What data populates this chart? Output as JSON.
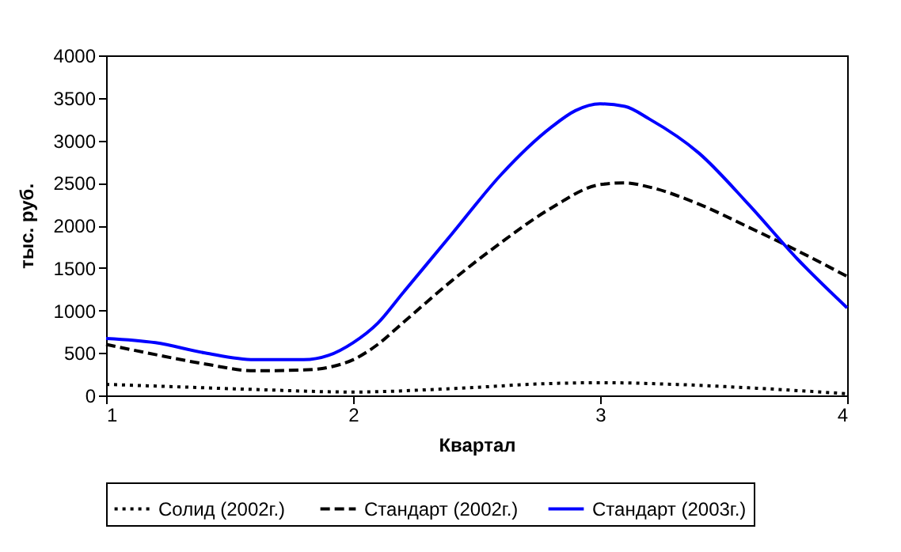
{
  "chart_data": {
    "type": "line",
    "xlabel": "Квартал",
    "ylabel": "тыс. руб.",
    "xlim": [
      1,
      4
    ],
    "xticks": [
      1,
      2,
      3,
      4
    ],
    "ylim": [
      0,
      4000
    ],
    "yticks": [
      0,
      500,
      1000,
      1500,
      2000,
      2500,
      3000,
      3500,
      4000
    ],
    "legend": "bottom",
    "grid": false,
    "marker": "none",
    "series": [
      {
        "name": "Солид  (2002г.)",
        "color": "#000000",
        "line_style": "dotted",
        "x": [
          1,
          1.3,
          1.6,
          2,
          2.4,
          2.8,
          3,
          3.3,
          3.6,
          4
        ],
        "values": [
          130,
          100,
          70,
          40,
          80,
          140,
          150,
          130,
          90,
          20
        ]
      },
      {
        "name": "Стандарт (2002г.)",
        "color": "#000000",
        "line_style": "dashed",
        "x": [
          1,
          1.2,
          1.4,
          1.6,
          1.8,
          1.9,
          2,
          2.1,
          2.2,
          2.4,
          2.6,
          2.8,
          3,
          3.1,
          3.2,
          3.4,
          3.6,
          3.8,
          4
        ],
        "values": [
          600,
          480,
          370,
          290,
          300,
          330,
          420,
          600,
          850,
          1350,
          1800,
          2200,
          2480,
          2500,
          2450,
          2250,
          1980,
          1700,
          1400
        ]
      },
      {
        "name": "Стандарт (2003г.)",
        "color": "#0000ff",
        "line_style": "solid",
        "x": [
          1,
          1.2,
          1.4,
          1.6,
          1.8,
          1.9,
          2,
          2.1,
          2.2,
          2.4,
          2.6,
          2.8,
          2.9,
          3,
          3.1,
          3.2,
          3.4,
          3.6,
          3.8,
          4
        ],
        "values": [
          670,
          620,
          500,
          420,
          420,
          470,
          620,
          850,
          1200,
          1900,
          2600,
          3150,
          3350,
          3430,
          3400,
          3250,
          2850,
          2250,
          1600,
          1030
        ]
      }
    ]
  }
}
